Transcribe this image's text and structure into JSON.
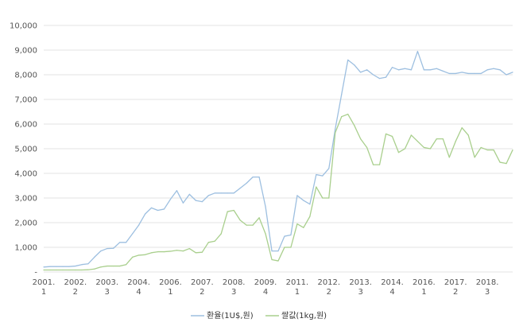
{
  "chart_data": {
    "type": "line",
    "title": "",
    "xlabel": "",
    "ylabel": "",
    "ylim": [
      0,
      10000
    ],
    "y_ticks": [
      {
        "value": 0,
        "label": "-"
      },
      {
        "value": 1000,
        "label": "1,000"
      },
      {
        "value": 2000,
        "label": "2,000"
      },
      {
        "value": 3000,
        "label": "3,000"
      },
      {
        "value": 4000,
        "label": "4,000"
      },
      {
        "value": 5000,
        "label": "5,000"
      },
      {
        "value": 6000,
        "label": "6,000"
      },
      {
        "value": 7000,
        "label": "7,000"
      },
      {
        "value": 8000,
        "label": "8,000"
      },
      {
        "value": 9000,
        "label": "9,000"
      },
      {
        "value": 10000,
        "label": "10,000"
      }
    ],
    "x_ticks": [
      {
        "index": 0,
        "line1": "2001.",
        "line2": "1"
      },
      {
        "index": 5,
        "line1": "2002.",
        "line2": "2"
      },
      {
        "index": 10,
        "line1": "2003.",
        "line2": "3"
      },
      {
        "index": 15,
        "line1": "2004.",
        "line2": "4"
      },
      {
        "index": 20,
        "line1": "2006.",
        "line2": "1"
      },
      {
        "index": 25,
        "line1": "2007.",
        "line2": "2"
      },
      {
        "index": 30,
        "line1": "2008.",
        "line2": "3"
      },
      {
        "index": 35,
        "line1": "2009.",
        "line2": "4"
      },
      {
        "index": 40,
        "line1": "2011.",
        "line2": "1"
      },
      {
        "index": 45,
        "line1": "2012.",
        "line2": "2"
      },
      {
        "index": 50,
        "line1": "2013.",
        "line2": "3"
      },
      {
        "index": 55,
        "line1": "2014.",
        "line2": "4"
      },
      {
        "index": 60,
        "line1": "2016.",
        "line2": "1"
      },
      {
        "index": 65,
        "line1": "2017.",
        "line2": "2"
      },
      {
        "index": 70,
        "line1": "2018.",
        "line2": "3"
      }
    ],
    "x_count": 75,
    "grid": true,
    "legend": "bottom",
    "series": [
      {
        "name": "환율(1U$,원)",
        "color": "#9dbfe0",
        "values": [
          200,
          220,
          220,
          220,
          220,
          240,
          300,
          330,
          600,
          850,
          950,
          960,
          1200,
          1200,
          1550,
          1900,
          2350,
          2600,
          2500,
          2550,
          2950,
          3300,
          2800,
          3150,
          2900,
          2850,
          3100,
          3200,
          3200,
          3200,
          3200,
          3400,
          3600,
          3850,
          3850,
          2650,
          850,
          850,
          1450,
          1500,
          3100,
          2900,
          2750,
          3950,
          3900,
          4200,
          5800,
          7200,
          8600,
          8400,
          8100,
          8200,
          8000,
          7850,
          7900,
          8300,
          8200,
          8250,
          8200,
          8950,
          8200,
          8200,
          8250,
          8150,
          8050,
          8050,
          8100,
          8050,
          8050,
          8050,
          8200,
          8250,
          8200,
          8000,
          8100
        ]
      },
      {
        "name": "쌀값(1kg,원)",
        "color": "#a9cf8d",
        "values": [
          80,
          80,
          80,
          80,
          80,
          80,
          80,
          90,
          120,
          200,
          240,
          240,
          240,
          300,
          600,
          680,
          700,
          780,
          820,
          820,
          840,
          880,
          850,
          950,
          780,
          800,
          1200,
          1250,
          1550,
          2450,
          2500,
          2100,
          1900,
          1900,
          2200,
          1550,
          500,
          450,
          1000,
          1000,
          1950,
          1800,
          2250,
          3450,
          3000,
          3000,
          5650,
          6300,
          6400,
          5950,
          5400,
          5050,
          4350,
          4350,
          5600,
          5500,
          4850,
          5000,
          5550,
          5300,
          5050,
          5000,
          5400,
          5400,
          4650,
          5300,
          5850,
          5550,
          4650,
          5050,
          4950,
          4950,
          4450,
          4400,
          4950
        ]
      }
    ]
  }
}
